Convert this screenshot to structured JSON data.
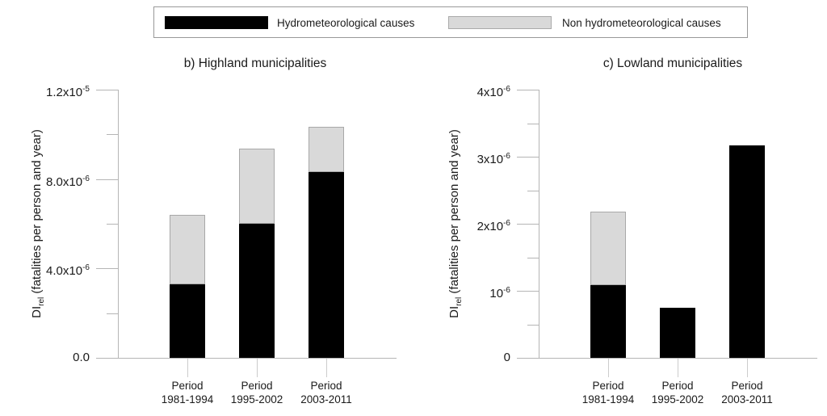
{
  "legend": {
    "items": [
      {
        "label": "Hydrometeorological causes",
        "color": "#000000"
      },
      {
        "label": "Non hydrometeorological causes",
        "color": "#d9d9d9"
      }
    ]
  },
  "colors": {
    "hydro": "#000000",
    "non_hydro": "#d9d9d9",
    "non_hydro_border": "#a8a8a8",
    "axis": "#b5b5b5",
    "category_tick": "#cccccc",
    "text": "#1a1a1a"
  },
  "chart_data": [
    {
      "type": "bar",
      "stacked": true,
      "title": "b) Highland municipalities",
      "ylabel": {
        "pre": "DI",
        "sub": "rel",
        "post": " (fatalities per person and year)"
      },
      "xlabel": "",
      "categories": [
        {
          "line1": "Period",
          "line2": "1981-1994"
        },
        {
          "line1": "Period",
          "line2": "1995-2002"
        },
        {
          "line1": "Period",
          "line2": "2003-2011"
        }
      ],
      "series": [
        {
          "name": "Hydrometeorological causes",
          "color": "#000000",
          "values": [
            3.3e-06,
            6e-06,
            8.3e-06
          ]
        },
        {
          "name": "Non hydrometeorological causes",
          "color": "#d9d9d9",
          "values": [
            3.1e-06,
            3.35e-06,
            2.05e-06
          ]
        }
      ],
      "stack_totals": [
        6.4e-06,
        9.35e-06,
        1.035e-05
      ],
      "ylim": [
        0,
        1.2e-05
      ],
      "yticks": [
        {
          "value": 0,
          "label": "0.0"
        },
        {
          "value": 4e-06,
          "label": "4.0x10",
          "exp": "-6"
        },
        {
          "value": 8e-06,
          "label": "8.0x10",
          "exp": "-6"
        },
        {
          "value": 1.2e-05,
          "label": "1.2x10",
          "exp": "-5"
        }
      ],
      "minor_yticks": [
        2e-06,
        6e-06,
        1e-05
      ],
      "grid": false,
      "legend_position": "top-shared"
    },
    {
      "type": "bar",
      "stacked": true,
      "title": "c) Lowland municipalities",
      "ylabel": {
        "pre": "DI",
        "sub": "rel",
        "post": " (fatalities per person and year)"
      },
      "xlabel": "",
      "categories": [
        {
          "line1": "Period",
          "line2": "1981-1994"
        },
        {
          "line1": "Period",
          "line2": "1995-2002"
        },
        {
          "line1": "Period",
          "line2": "2003-2011"
        }
      ],
      "series": [
        {
          "name": "Hydrometeorological causes",
          "color": "#000000",
          "values": [
            1.08e-06,
            7.5e-07,
            3.17e-06
          ]
        },
        {
          "name": "Non hydrometeorological causes",
          "color": "#d9d9d9",
          "values": [
            1.1e-06,
            0,
            0
          ]
        }
      ],
      "stack_totals": [
        2.18e-06,
        7.5e-07,
        3.17e-06
      ],
      "ylim": [
        0,
        4e-06
      ],
      "yticks": [
        {
          "value": 0,
          "label": "0"
        },
        {
          "value": 1e-06,
          "label": "10",
          "exp": "-6"
        },
        {
          "value": 2e-06,
          "label": "2x10",
          "exp": "-6"
        },
        {
          "value": 3e-06,
          "label": "3x10",
          "exp": "-6"
        },
        {
          "value": 4e-06,
          "label": "4x10",
          "exp": "-6"
        }
      ],
      "minor_yticks": [
        5e-07,
        1.5e-06,
        2.5e-06,
        3.5e-06
      ],
      "grid": false,
      "legend_position": "top-shared"
    }
  ]
}
